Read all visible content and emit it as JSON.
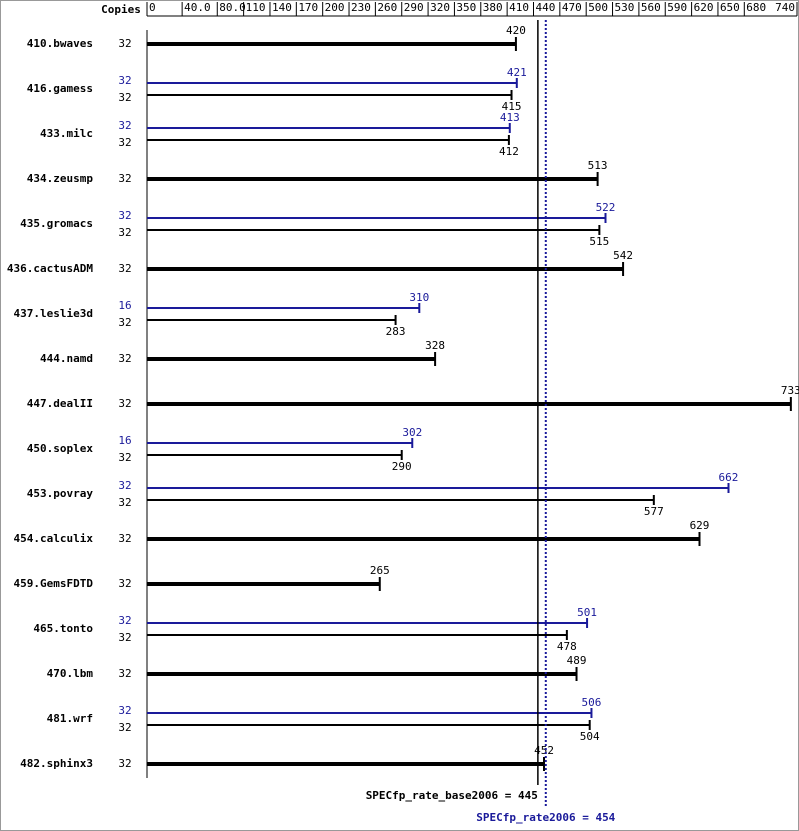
{
  "chart_data": {
    "type": "bar",
    "orientation": "horizontal",
    "copies_header": "Copies",
    "categories": [
      "410.bwaves",
      "416.gamess",
      "433.milc",
      "434.zeusmp",
      "435.gromacs",
      "436.cactusADM",
      "437.leslie3d",
      "444.namd",
      "447.dealII",
      "450.soplex",
      "453.povray",
      "454.calculix",
      "459.GemsFDTD",
      "465.tonto",
      "470.lbm",
      "481.wrf",
      "482.sphinx3"
    ],
    "series": [
      {
        "name": "peak",
        "color": "#1a1a9a",
        "copies": [
          null,
          32,
          32,
          null,
          32,
          null,
          16,
          null,
          null,
          16,
          32,
          null,
          null,
          32,
          null,
          32,
          null
        ],
        "values": [
          null,
          421,
          413,
          null,
          522,
          null,
          310,
          null,
          null,
          302,
          662,
          null,
          null,
          501,
          null,
          506,
          null
        ]
      },
      {
        "name": "base",
        "color": "#000000",
        "copies": [
          32,
          32,
          32,
          32,
          32,
          32,
          32,
          32,
          32,
          32,
          32,
          32,
          32,
          32,
          32,
          32,
          32
        ],
        "values": [
          420,
          415,
          412,
          513,
          515,
          542,
          283,
          328,
          733,
          290,
          577,
          629,
          265,
          478,
          489,
          504,
          452
        ]
      }
    ],
    "xlim": [
      0,
      740
    ],
    "xticks": [
      0,
      {
        "value": 40,
        "label": "40.0"
      },
      {
        "value": 80,
        "label": "80.0"
      },
      110,
      140,
      170,
      200,
      230,
      260,
      290,
      320,
      350,
      380,
      410,
      440,
      470,
      500,
      530,
      560,
      590,
      620,
      650,
      680,
      740
    ],
    "reference_lines": [
      {
        "label": "SPECfp_rate_base2006 = 445",
        "value": 445,
        "color": "#000000",
        "style": "solid"
      },
      {
        "label": "SPECfp_rate2006 = 454",
        "value": 454,
        "color": "#1a1a9a",
        "style": "dotted"
      }
    ]
  }
}
